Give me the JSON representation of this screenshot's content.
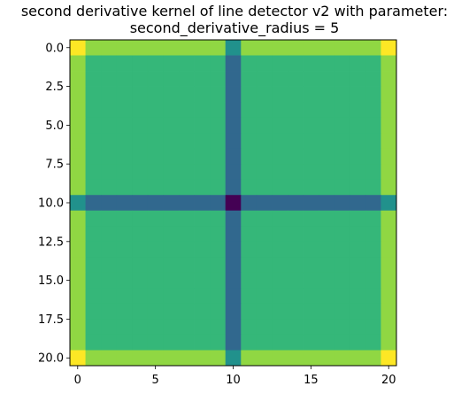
{
  "chart_data": {
    "type": "heatmap",
    "title_lines": [
      "second derivative kernel of line detector v2 with parameter:",
      "second_derivative_radius = 5"
    ],
    "xlabel": "",
    "ylabel": "",
    "shape": [
      21,
      21
    ],
    "x_ticks": [
      0,
      5,
      10,
      15,
      20
    ],
    "x_tick_labels": [
      "0",
      "5",
      "10",
      "15",
      "20"
    ],
    "y_ticks": [
      0.0,
      2.5,
      5.0,
      7.5,
      10.0,
      12.5,
      15.0,
      17.5,
      20.0
    ],
    "y_tick_labels": [
      "0.0",
      "2.5",
      "5.0",
      "7.5",
      "10.0",
      "12.5",
      "15.0",
      "17.5",
      "20.0"
    ],
    "xlim": [
      -0.5,
      20.5
    ],
    "ylim": [
      20.5,
      -0.5
    ],
    "colormap": "viridis",
    "color_levels": {
      "yellow": "#fde725",
      "light_green": "#90d743",
      "green": "#35b779",
      "teal": "#21918c",
      "blue": "#31688e",
      "purple": "#440154"
    },
    "center_index": 10,
    "edge_indices": [
      0,
      20
    ],
    "level_rules": {
      "corner": "yellow",
      "edge_not_cross": "light_green",
      "interior": "green",
      "edge_cross": "teal",
      "cross_line": "blue",
      "center": "purple"
    }
  }
}
